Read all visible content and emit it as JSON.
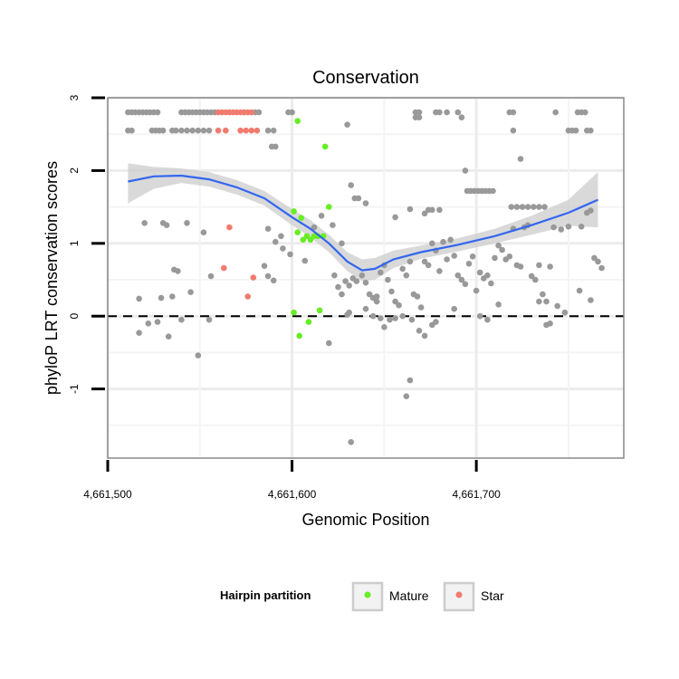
{
  "chart_data": {
    "type": "scatter",
    "title": "Conservation",
    "xlabel": "Genomic Position",
    "ylabel": "phyloP LRT conservation scores",
    "xlim": [
      4661500,
      4661780
    ],
    "ylim": [
      -1.95,
      3.0
    ],
    "x_ticks": [
      {
        "value": 4661500,
        "label": "4,661,500"
      },
      {
        "value": 4661600,
        "label": "4,661,600"
      },
      {
        "value": 4661700,
        "label": "4,661,700"
      }
    ],
    "y_ticks": [
      {
        "value": 3,
        "label": "3"
      },
      {
        "value": 2,
        "label": "2"
      },
      {
        "value": 1,
        "label": "1"
      },
      {
        "value": 0,
        "label": "0"
      },
      {
        "value": -1,
        "label": "-1"
      }
    ],
    "grid": true,
    "reference_line": {
      "y": 0,
      "style": "dashed"
    },
    "legend": {
      "title": "Hairpin partition",
      "placement": "bottom",
      "entries": [
        {
          "label": "Mature",
          "color": "#66ee22"
        },
        {
          "label": "Star",
          "color": "#f07b6e"
        }
      ]
    },
    "colors": {
      "other": "#999999",
      "Mature": "#66ee22",
      "Star": "#f07b6e",
      "smooth": "#3366ee",
      "band": "#cccccc"
    },
    "series": [
      {
        "name": "Mature",
        "points": [
          [
            4661601,
            1.44
          ],
          [
            4661603,
            1.15
          ],
          [
            4661605,
            1.35
          ],
          [
            4661606,
            1.05
          ],
          [
            4661608,
            1.1
          ],
          [
            4661610,
            1.05
          ],
          [
            4661612,
            1.1
          ],
          [
            4661614,
            1.1
          ],
          [
            4661617,
            1.1
          ],
          [
            4661618,
            2.33
          ],
          [
            4661603,
            2.68
          ],
          [
            4661620,
            1.5
          ],
          [
            4661601,
            0.05
          ],
          [
            4661604,
            -0.27
          ],
          [
            4661609,
            -0.08
          ],
          [
            4661615,
            0.08
          ]
        ]
      },
      {
        "name": "Star",
        "points": [
          [
            4661560,
            2.8
          ],
          [
            4661562,
            2.8
          ],
          [
            4661564,
            2.8
          ],
          [
            4661566,
            2.8
          ],
          [
            4661568,
            2.8
          ],
          [
            4661570,
            2.8
          ],
          [
            4661572,
            2.8
          ],
          [
            4661574,
            2.8
          ],
          [
            4661576,
            2.8
          ],
          [
            4661578,
            2.8
          ],
          [
            4661560,
            2.55
          ],
          [
            4661564,
            2.55
          ],
          [
            4661572,
            2.55
          ],
          [
            4661575,
            2.55
          ],
          [
            4661578,
            2.55
          ],
          [
            4661581,
            2.55
          ],
          [
            4661566,
            1.22
          ],
          [
            4661563,
            0.66
          ],
          [
            4661579,
            0.53
          ],
          [
            4661576,
            0.27
          ]
        ]
      },
      {
        "name": "",
        "points": [
          [
            4661511,
            2.8
          ],
          [
            4661513,
            2.8
          ],
          [
            4661515,
            2.8
          ],
          [
            4661517,
            2.8
          ],
          [
            4661519,
            2.8
          ],
          [
            4661521,
            2.8
          ],
          [
            4661523,
            2.8
          ],
          [
            4661525,
            2.8
          ],
          [
            4661527,
            2.8
          ],
          [
            4661540,
            2.8
          ],
          [
            4661542,
            2.8
          ],
          [
            4661544,
            2.8
          ],
          [
            4661546,
            2.8
          ],
          [
            4661548,
            2.8
          ],
          [
            4661550,
            2.8
          ],
          [
            4661552,
            2.8
          ],
          [
            4661554,
            2.8
          ],
          [
            4661556,
            2.8
          ],
          [
            4661558,
            2.8
          ],
          [
            4661580,
            2.8
          ],
          [
            4661582,
            2.8
          ],
          [
            4661598,
            2.8
          ],
          [
            4661600,
            2.8
          ],
          [
            4661667,
            2.8
          ],
          [
            4661669,
            2.8
          ],
          [
            4661678,
            2.8
          ],
          [
            4661680,
            2.8
          ],
          [
            4661684,
            2.8
          ],
          [
            4661690,
            2.8
          ],
          [
            4661718,
            2.8
          ],
          [
            4661720,
            2.8
          ],
          [
            4661743,
            2.8
          ],
          [
            4661755,
            2.8
          ],
          [
            4661757,
            2.8
          ],
          [
            4661759,
            2.8
          ],
          [
            4661511,
            2.55
          ],
          [
            4661513,
            2.55
          ],
          [
            4661524,
            2.55
          ],
          [
            4661526,
            2.55
          ],
          [
            4661528,
            2.55
          ],
          [
            4661530,
            2.55
          ],
          [
            4661535,
            2.55
          ],
          [
            4661537,
            2.55
          ],
          [
            4661540,
            2.55
          ],
          [
            4661543,
            2.55
          ],
          [
            4661546,
            2.55
          ],
          [
            4661549,
            2.55
          ],
          [
            4661552,
            2.55
          ],
          [
            4661555,
            2.55
          ],
          [
            4661587,
            2.55
          ],
          [
            4661590,
            2.55
          ],
          [
            4661667,
            2.73
          ],
          [
            4661669,
            2.73
          ],
          [
            4661692,
            2.73
          ],
          [
            4661720,
            2.55
          ],
          [
            4661750,
            2.55
          ],
          [
            4661752,
            2.55
          ],
          [
            4661754,
            2.55
          ],
          [
            4661760,
            2.55
          ],
          [
            4661762,
            2.55
          ],
          [
            4661589,
            2.33
          ],
          [
            4661591,
            2.33
          ],
          [
            4661630,
            2.63
          ],
          [
            4661724,
            2.16
          ],
          [
            4661694,
            2.0
          ],
          [
            4661634,
            1.62
          ],
          [
            4661636,
            1.62
          ],
          [
            4661640,
            1.55
          ],
          [
            4661632,
            1.8
          ],
          [
            4661695,
            1.72
          ],
          [
            4661697,
            1.72
          ],
          [
            4661699,
            1.72
          ],
          [
            4661701,
            1.72
          ],
          [
            4661703,
            1.72
          ],
          [
            4661705,
            1.72
          ],
          [
            4661707,
            1.72
          ],
          [
            4661709,
            1.72
          ],
          [
            4661719,
            1.5
          ],
          [
            4661722,
            1.5
          ],
          [
            4661725,
            1.5
          ],
          [
            4661728,
            1.5
          ],
          [
            4661731,
            1.5
          ],
          [
            4661734,
            1.5
          ],
          [
            4661737,
            1.5
          ],
          [
            4661674,
            1.46
          ],
          [
            4661676,
            1.46
          ],
          [
            4661680,
            1.46
          ],
          [
            4661672,
            1.41
          ],
          [
            4661664,
            1.47
          ],
          [
            4661656,
            1.36
          ],
          [
            4661616,
            1.38
          ],
          [
            4661530,
            1.28
          ],
          [
            4661532,
            1.25
          ],
          [
            4661543,
            1.28
          ],
          [
            4661536,
            0.64
          ],
          [
            4661538,
            0.62
          ],
          [
            4661552,
            1.15
          ],
          [
            4661587,
            1.2
          ],
          [
            4661591,
            1.02
          ],
          [
            4661594,
            1.1
          ],
          [
            4661595,
            0.93
          ],
          [
            4661587,
            0.55
          ],
          [
            4661590,
            0.49
          ],
          [
            4661520,
            1.28
          ],
          [
            4661517,
            0.24
          ],
          [
            4661529,
            0.25
          ],
          [
            4661535,
            0.27
          ],
          [
            4661545,
            0.33
          ],
          [
            4661556,
            0.55
          ],
          [
            4661585,
            0.69
          ],
          [
            4661599,
            0.85
          ],
          [
            4661607,
            0.76
          ],
          [
            4661623,
            0.56
          ],
          [
            4661625,
            0.4
          ],
          [
            4661627,
            0.3
          ],
          [
            4661629,
            0.48
          ],
          [
            4661631,
            0.42
          ],
          [
            4661633,
            0.52
          ],
          [
            4661635,
            0.48
          ],
          [
            4661638,
            0.56
          ],
          [
            4661640,
            0.46
          ],
          [
            4661642,
            0.3
          ],
          [
            4661644,
            0.25
          ],
          [
            4661646,
            0.2
          ],
          [
            4661648,
            0.6
          ],
          [
            4661650,
            0.7
          ],
          [
            4661652,
            0.5
          ],
          [
            4661654,
            0.34
          ],
          [
            4661656,
            0.2
          ],
          [
            4661658,
            0.15
          ],
          [
            4661660,
            0.65
          ],
          [
            4661662,
            0.56
          ],
          [
            4661664,
            0.75
          ],
          [
            4661666,
            0.3
          ],
          [
            4661668,
            0.27
          ],
          [
            4661670,
            0.12
          ],
          [
            4661672,
            0.75
          ],
          [
            4661674,
            0.7
          ],
          [
            4661676,
            1.0
          ],
          [
            4661678,
            0.9
          ],
          [
            4661680,
            0.62
          ],
          [
            4661682,
            1.02
          ],
          [
            4661684,
            0.78
          ],
          [
            4661686,
            1.05
          ],
          [
            4661688,
            0.83
          ],
          [
            4661690,
            0.56
          ],
          [
            4661692,
            0.5
          ],
          [
            4661694,
            0.44
          ],
          [
            4661696,
            0.72
          ],
          [
            4661698,
            0.82
          ],
          [
            4661700,
            0.35
          ],
          [
            4661702,
            0.6
          ],
          [
            4661704,
            0.52
          ],
          [
            4661706,
            0.56
          ],
          [
            4661708,
            0.45
          ],
          [
            4661710,
            0.8
          ],
          [
            4661712,
            0.97
          ],
          [
            4661714,
            0.91
          ],
          [
            4661716,
            0.78
          ],
          [
            4661718,
            0.82
          ],
          [
            4661720,
            1.2
          ],
          [
            4661722,
            0.7
          ],
          [
            4661724,
            0.68
          ],
          [
            4661726,
            1.22
          ],
          [
            4661728,
            1.25
          ],
          [
            4661730,
            0.55
          ],
          [
            4661732,
            0.5
          ],
          [
            4661734,
            0.7
          ],
          [
            4661736,
            0.3
          ],
          [
            4661738,
            0.2
          ],
          [
            4661740,
            0.68
          ],
          [
            4661742,
            1.22
          ],
          [
            4661746,
            1.19
          ],
          [
            4661750,
            1.23
          ],
          [
            4661757,
            1.23
          ],
          [
            4661760,
            1.42
          ],
          [
            4661762,
            1.45
          ],
          [
            4661764,
            0.8
          ],
          [
            4661766,
            0.75
          ],
          [
            4661768,
            0.66
          ],
          [
            4661756,
            0.35
          ],
          [
            4661748,
            0.05
          ],
          [
            4661744,
            0.14
          ],
          [
            4661740,
            -0.1
          ],
          [
            4661738,
            -0.12
          ],
          [
            4661734,
            0.2
          ],
          [
            4661762,
            0.22
          ],
          [
            4661517,
            -0.23
          ],
          [
            4661522,
            -0.1
          ],
          [
            4661527,
            -0.08
          ],
          [
            4661533,
            -0.28
          ],
          [
            4661540,
            -0.05
          ],
          [
            4661549,
            -0.54
          ],
          [
            4661555,
            -0.05
          ],
          [
            4661620,
            -0.37
          ],
          [
            4661631,
            0.05
          ],
          [
            4661644,
            0.0
          ],
          [
            4661648,
            -0.03
          ],
          [
            4661650,
            -0.15
          ],
          [
            4661653,
            -0.05
          ],
          [
            4661656,
            -0.03
          ],
          [
            4661660,
            0.0
          ],
          [
            4661665,
            -0.05
          ],
          [
            4661669,
            -0.2
          ],
          [
            4661672,
            -0.27
          ],
          [
            4661676,
            -0.12
          ],
          [
            4661678,
            -0.08
          ],
          [
            4661630,
            0.02
          ],
          [
            4661640,
            0.1
          ],
          [
            4661646,
            0.27
          ],
          [
            4661688,
            0.1
          ],
          [
            4661702,
            0.0
          ],
          [
            4661706,
            -0.05
          ],
          [
            4661712,
            0.16
          ],
          [
            4661664,
            -0.88
          ],
          [
            4661662,
            -1.1
          ],
          [
            4661632,
            -1.73
          ],
          [
            4661612,
            1.22
          ],
          [
            4661622,
            1.25
          ],
          [
            4661627,
            1.0
          ]
        ]
      }
    ],
    "smooth": {
      "x": [
        4661511,
        4661525,
        4661540,
        4661555,
        4661570,
        4661585,
        4661600,
        4661610,
        4661620,
        4661630,
        4661638,
        4661645,
        4661655,
        4661670,
        4661690,
        4661710,
        4661730,
        4661750,
        4661766
      ],
      "y": [
        1.85,
        1.92,
        1.93,
        1.88,
        1.77,
        1.62,
        1.36,
        1.2,
        1.0,
        0.75,
        0.63,
        0.65,
        0.78,
        0.88,
        0.98,
        1.1,
        1.25,
        1.42,
        1.6
      ],
      "band_upper": [
        2.1,
        2.05,
        2.03,
        1.98,
        1.87,
        1.72,
        1.47,
        1.32,
        1.12,
        0.88,
        0.78,
        0.8,
        0.9,
        0.97,
        1.07,
        1.2,
        1.38,
        1.6,
        1.98
      ],
      "band_lower": [
        1.55,
        1.75,
        1.83,
        1.78,
        1.67,
        1.52,
        1.25,
        1.08,
        0.88,
        0.62,
        0.48,
        0.5,
        0.66,
        0.79,
        0.89,
        1.0,
        1.12,
        1.24,
        1.22
      ]
    }
  }
}
